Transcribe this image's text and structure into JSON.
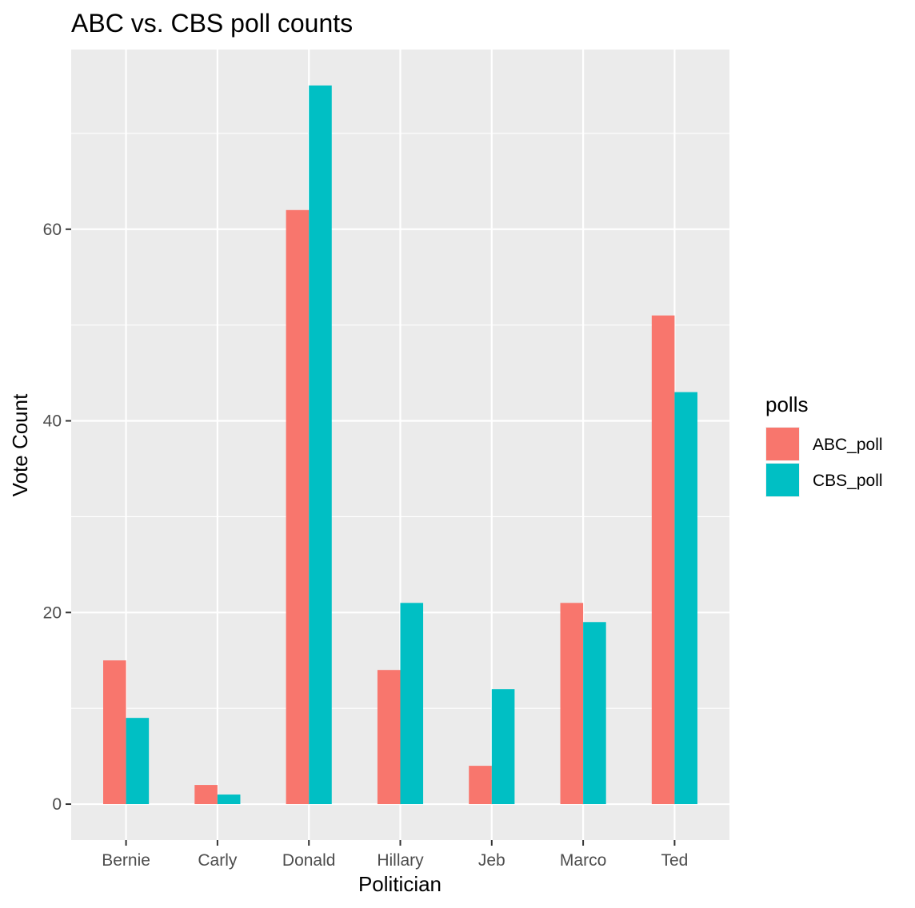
{
  "chart_data": {
    "type": "bar",
    "title": "ABC vs. CBS poll counts",
    "xlabel": "Politician",
    "ylabel": "Vote Count",
    "categories": [
      "Bernie",
      "Carly",
      "Donald",
      "Hillary",
      "Jeb",
      "Marco",
      "Ted"
    ],
    "series": [
      {
        "name": "ABC_poll",
        "color": "#F8766D",
        "values": [
          15,
          2,
          62,
          14,
          4,
          21,
          51
        ]
      },
      {
        "name": "CBS_poll",
        "color": "#00BFC4",
        "values": [
          9,
          1,
          75,
          21,
          12,
          19,
          43
        ]
      }
    ],
    "ylim": [
      -3.75,
      78.75
    ],
    "yticks": [
      0,
      20,
      40,
      60
    ],
    "ytick_labels": [
      "0",
      "20",
      "40",
      "60"
    ],
    "grid": true,
    "legend": {
      "title": "polls",
      "position": "right"
    },
    "colors": {
      "panel_background": "#EBEBEB",
      "grid": "#FFFFFF",
      "tick_text": "#4D4D4D"
    }
  }
}
